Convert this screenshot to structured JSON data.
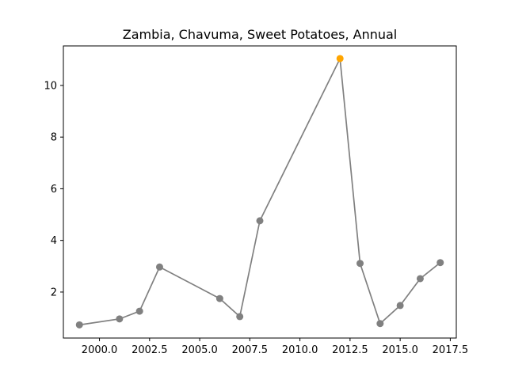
{
  "chart_data": {
    "type": "line",
    "title": "Zambia, Chavuma, Sweet Potatoes, Annual",
    "xlabel": "",
    "ylabel": "",
    "xlim": [
      1998.2,
      2017.8
    ],
    "ylim": [
      0.22,
      11.53
    ],
    "xticks": [
      2000.0,
      2002.5,
      2005.0,
      2007.5,
      2010.0,
      2012.5,
      2015.0,
      2017.5
    ],
    "xtick_labels": [
      "2000.0",
      "2002.5",
      "2005.0",
      "2007.5",
      "2010.0",
      "2012.5",
      "2015.0",
      "2017.5"
    ],
    "yticks": [
      2,
      4,
      6,
      8,
      10
    ],
    "ytick_labels": [
      "2",
      "4",
      "6",
      "8",
      "10"
    ],
    "grid": false,
    "series": [
      {
        "x": [
          1999,
          2001,
          2002,
          2003,
          2006,
          2007,
          2008,
          2012,
          2013,
          2014,
          2015,
          2016,
          2017
        ],
        "values": [
          0.73,
          0.96,
          1.26,
          2.97,
          1.75,
          1.05,
          4.76,
          11.04,
          3.11,
          0.78,
          1.48,
          2.52,
          3.14
        ],
        "line_color": "#808080",
        "marker_color": "#808080"
      }
    ],
    "highlight": {
      "x": 2012,
      "value": 11.04,
      "color": "#ffa500"
    }
  }
}
